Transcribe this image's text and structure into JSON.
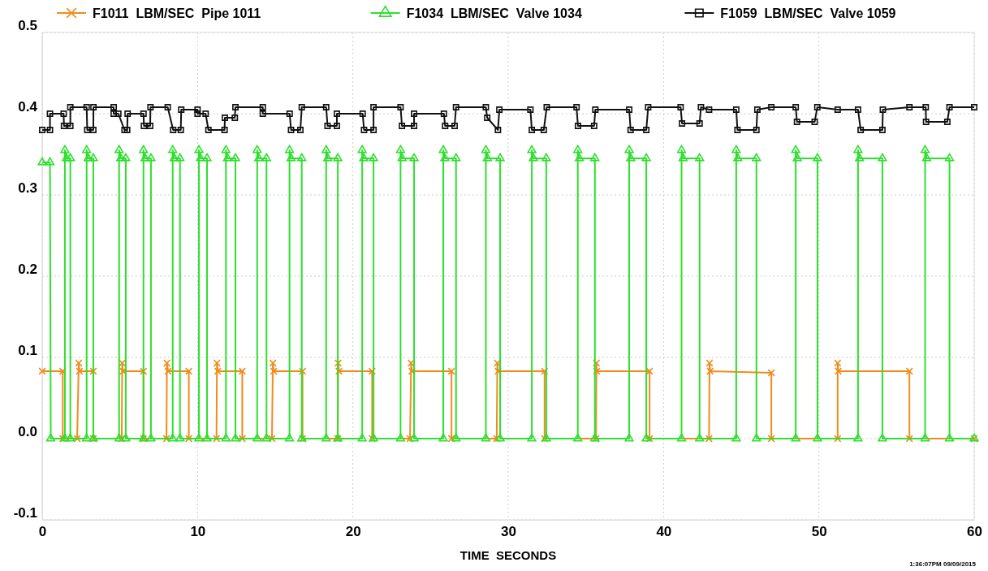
{
  "chart_data": {
    "type": "line",
    "xlabel": "TIME  SECONDS",
    "xlim": [
      0,
      60
    ],
    "xticks": [
      0,
      10,
      20,
      30,
      40,
      50,
      60
    ],
    "ylim": [
      -0.1,
      0.5
    ],
    "yticks": [
      -0.1,
      {
        "value": 0,
        "label": "0.0"
      },
      0.1,
      0.2,
      0.3,
      0.4,
      0.5
    ],
    "grid": true,
    "legend": "top",
    "line_style": "solid",
    "annotations": [
      "1:36:07PM 09/09/2015"
    ],
    "series": [
      {
        "name": "F1011  LBM/SEC  Pipe 1011",
        "color": "#f08c1e",
        "marker": "cross",
        "x": [
          0,
          1.32,
          1.32,
          2.25,
          2.35,
          2.4,
          3.29,
          3.29,
          5.12,
          5.15,
          5.2,
          6.52,
          6.52,
          8.0,
          8.03,
          8.1,
          9.44,
          9.44,
          11.22,
          11.25,
          11.3,
          12.88,
          12.88,
          14.79,
          14.85,
          14.9,
          16.76,
          16.76,
          19.03,
          19.05,
          19.1,
          21.24,
          21.24,
          23.68,
          23.75,
          23.8,
          26.35,
          26.35,
          29.26,
          29.3,
          29.35,
          32.34,
          32.34,
          35.65,
          35.68,
          35.7,
          39.1,
          39.1,
          42.93,
          42.96,
          43.0,
          46.94,
          46.94,
          51.21,
          51.21,
          51.25,
          55.83,
          55.83,
          60
        ],
        "values": [
          0.083,
          0.083,
          0,
          0,
          0.093,
          0.083,
          0.083,
          0,
          0,
          0.093,
          0.083,
          0.083,
          0,
          0,
          0.093,
          0.083,
          0.083,
          0,
          0,
          0.093,
          0.083,
          0.083,
          0,
          0,
          0.093,
          0.083,
          0.083,
          0,
          0,
          0.093,
          0.083,
          0.083,
          0,
          0,
          0.093,
          0.083,
          0.083,
          0,
          0,
          0.093,
          0.083,
          0.083,
          0,
          0,
          0.093,
          0.083,
          0.083,
          0,
          0,
          0.093,
          0.083,
          0.081,
          0,
          0,
          0.093,
          0.083,
          0.083,
          0,
          0
        ]
      },
      {
        "name": "F1034  LBM/SEC  Valve 1034",
        "color": "#2ee02e",
        "marker": "triangle",
        "x": [
          0,
          0.5,
          0.55,
          1.46,
          1.46,
          1.56,
          1.81,
          1.81,
          2.86,
          2.86,
          2.96,
          3.29,
          3.29,
          4.95,
          4.95,
          5.05,
          5.38,
          5.38,
          6.52,
          6.52,
          6.62,
          7.0,
          7.0,
          8.4,
          8.4,
          8.5,
          8.87,
          8.87,
          10.09,
          10.09,
          10.19,
          10.61,
          10.61,
          11.83,
          11.83,
          11.93,
          12.44,
          12.44,
          13.84,
          13.84,
          13.94,
          14.44,
          14.44,
          15.92,
          15.92,
          16.02,
          16.71,
          16.71,
          18.28,
          18.28,
          18.38,
          19.03,
          19.03,
          20.6,
          20.6,
          20.7,
          21.33,
          21.33,
          23.07,
          23.07,
          23.17,
          23.94,
          23.94,
          25.82,
          25.82,
          25.92,
          26.64,
          26.64,
          28.56,
          28.56,
          28.66,
          29.48,
          29.48,
          31.52,
          31.52,
          31.62,
          32.45,
          32.45,
          34.48,
          34.48,
          34.58,
          35.58,
          35.58,
          37.79,
          37.79,
          37.89,
          38.89,
          38.89,
          41.16,
          41.16,
          41.26,
          42.32,
          42.32,
          44.68,
          44.68,
          44.78,
          45.98,
          45.98,
          48.51,
          48.51,
          48.61,
          49.91,
          49.91,
          52.52,
          52.52,
          52.62,
          54.09,
          54.09,
          56.84,
          56.84,
          56.94,
          58.41,
          58.41,
          60
        ],
        "values": [
          0.34,
          0.34,
          0,
          0,
          0.355,
          0.345,
          0.345,
          0,
          0,
          0.355,
          0.345,
          0.345,
          0,
          0,
          0.355,
          0.345,
          0.345,
          0,
          0,
          0.355,
          0.345,
          0.345,
          0,
          0,
          0.355,
          0.345,
          0.345,
          0,
          0,
          0.355,
          0.345,
          0.345,
          0,
          0,
          0.355,
          0.345,
          0.345,
          0,
          0,
          0.355,
          0.345,
          0.345,
          0,
          0,
          0.355,
          0.345,
          0.345,
          0,
          0,
          0.355,
          0.345,
          0.345,
          0,
          0,
          0.355,
          0.345,
          0.345,
          0,
          0,
          0.355,
          0.345,
          0.345,
          0,
          0,
          0.355,
          0.345,
          0.345,
          0,
          0,
          0.355,
          0.345,
          0.345,
          0,
          0,
          0.355,
          0.345,
          0.345,
          0,
          0,
          0.355,
          0.345,
          0.345,
          0,
          0,
          0.355,
          0.345,
          0.345,
          0,
          0,
          0.355,
          0.345,
          0.345,
          0,
          0,
          0.355,
          0.345,
          0.345,
          0,
          0,
          0.355,
          0.345,
          0.345,
          0,
          0,
          0.355,
          0.345,
          0.345,
          0,
          0,
          0.355,
          0.345,
          0.345,
          0,
          0
        ]
      },
      {
        "name": "F1059  LBM/SEC  Valve 1059",
        "color": "#111111",
        "marker": "square",
        "x": [
          0,
          0.5,
          0.5,
          1.38,
          1.4,
          1.81,
          1.81,
          2.86,
          2.9,
          3.29,
          3.3,
          4.6,
          4.6,
          4.9,
          5.3,
          5.47,
          5.5,
          6.52,
          6.55,
          6.95,
          6.97,
          8.08,
          8.43,
          8.92,
          8.95,
          10.0,
          10.0,
          10.52,
          10.7,
          11.74,
          11.76,
          12.4,
          12.44,
          14.2,
          14.2,
          15.93,
          16.02,
          16.62,
          16.71,
          18.28,
          18.37,
          18.97,
          18.97,
          20.63,
          20.72,
          21.33,
          21.33,
          23.07,
          23.16,
          23.94,
          23.94,
          25.86,
          25.94,
          26.55,
          26.64,
          28.56,
          28.65,
          29.34,
          29.43,
          31.43,
          31.52,
          32.29,
          32.48,
          34.4,
          34.49,
          35.53,
          35.61,
          37.79,
          37.88,
          38.89,
          39.01,
          41.1,
          41.19,
          42.32,
          42.41,
          42.93,
          44.68,
          44.76,
          45.98,
          46.04,
          46.94,
          48.51,
          48.59,
          49.73,
          49.9,
          51.21,
          52.52,
          52.69,
          54.09,
          54.12,
          55.83,
          56.88,
          56.9,
          58.27,
          58.41,
          60
        ],
        "values": [
          0.38,
          0.38,
          0.4,
          0.4,
          0.385,
          0.385,
          0.408,
          0.408,
          0.38,
          0.38,
          0.408,
          0.408,
          0.4,
          0.4,
          0.38,
          0.38,
          0.4,
          0.4,
          0.385,
          0.385,
          0.408,
          0.408,
          0.38,
          0.38,
          0.405,
          0.405,
          0.4,
          0.4,
          0.38,
          0.38,
          0.395,
          0.395,
          0.408,
          0.408,
          0.4,
          0.4,
          0.38,
          0.38,
          0.408,
          0.408,
          0.385,
          0.385,
          0.4,
          0.4,
          0.38,
          0.38,
          0.408,
          0.408,
          0.385,
          0.385,
          0.4,
          0.4,
          0.385,
          0.385,
          0.408,
          0.408,
          0.395,
          0.38,
          0.405,
          0.405,
          0.38,
          0.38,
          0.408,
          0.408,
          0.385,
          0.385,
          0.405,
          0.405,
          0.38,
          0.38,
          0.408,
          0.408,
          0.388,
          0.388,
          0.408,
          0.405,
          0.405,
          0.38,
          0.38,
          0.405,
          0.408,
          0.408,
          0.39,
          0.39,
          0.408,
          0.405,
          0.405,
          0.38,
          0.38,
          0.405,
          0.408,
          0.408,
          0.39,
          0.39,
          0.408,
          0.408
        ]
      }
    ]
  }
}
